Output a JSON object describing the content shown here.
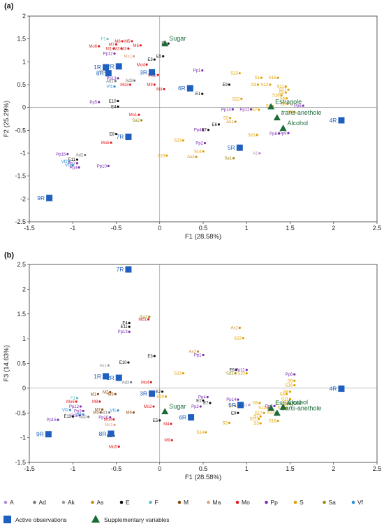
{
  "palette": {
    "A": "#b08fd0",
    "Ad": "#777777",
    "Ak": "#9a9a9a",
    "As": "#c98a1a",
    "E": "#111111",
    "F": "#5bbdbd",
    "M": "#8a4a12",
    "Ma": "#d9a27f",
    "Mo": "#e02020",
    "Pp": "#7a2fb0",
    "S": "#e0a000",
    "Sa": "#9a8a10",
    "Vf": "#2b8fd9",
    "active": "#1f5fbf",
    "supp": "#1b6b3a"
  },
  "legend": {
    "groups": [
      "A",
      "Ad",
      "Ak",
      "As",
      "E",
      "F",
      "M",
      "Ma",
      "Mo",
      "Pp",
      "S",
      "Sa",
      "Vf"
    ],
    "active_label": "Active observations",
    "supp_label": "Supplementary variables"
  },
  "chart_data": [
    {
      "panel": "(a)",
      "type": "scatter",
      "xlabel": "F1 (28.58%)",
      "ylabel": "F2 (25.29%)",
      "xlim": [
        -1.5,
        2.5
      ],
      "ylim": [
        -2.5,
        2.0
      ],
      "xticks": [
        "-1.5",
        "-1",
        "-0.5",
        "0",
        "0.5",
        "1",
        "1.5",
        "2",
        "2.5"
      ],
      "yticks": [
        "-2.5",
        "-2",
        "-1.5",
        "-1",
        "-0.5",
        "0",
        "0.5",
        "1",
        "1.5",
        "2"
      ],
      "points": [
        {
          "l": "M8",
          "g": "Mo",
          "x": -0.43,
          "y": 1.45
        },
        {
          "l": "M5",
          "g": "Mo",
          "x": -0.32,
          "y": 1.45
        },
        {
          "l": "M7",
          "g": "Mo",
          "x": -0.5,
          "y": 1.38
        },
        {
          "l": "M6",
          "g": "Mo",
          "x": -0.22,
          "y": 1.36
        },
        {
          "l": "Mo6",
          "g": "Mo",
          "x": -0.7,
          "y": 1.34
        },
        {
          "l": "M1",
          "g": "Mo",
          "x": -0.53,
          "y": 1.29
        },
        {
          "l": "M2",
          "g": "Mo",
          "x": -0.44,
          "y": 1.29
        },
        {
          "l": "M3",
          "g": "Mo",
          "x": -0.36,
          "y": 1.29
        },
        {
          "l": "Pp12",
          "g": "Pp",
          "x": -0.52,
          "y": 1.18
        },
        {
          "l": "Ms1",
          "g": "Ma",
          "x": -0.3,
          "y": 1.12
        },
        {
          "l": "F1",
          "g": "F",
          "x": -0.6,
          "y": 1.5
        },
        {
          "l": "Mo4",
          "g": "Mo",
          "x": -0.15,
          "y": 0.94
        },
        {
          "l": "E3",
          "g": "E",
          "x": -0.06,
          "y": 1.05
        },
        {
          "l": "E2",
          "g": "E",
          "x": 0.1,
          "y": 1.4
        },
        {
          "l": "E5",
          "g": "E",
          "x": 0.04,
          "y": 1.12
        },
        {
          "l": "Ak1",
          "g": "Ak",
          "x": -0.6,
          "y": 0.79
        },
        {
          "l": "Pp13",
          "g": "Pp",
          "x": -0.48,
          "y": 0.64
        },
        {
          "l": "Ad1",
          "g": "Ad",
          "x": -0.51,
          "y": 0.58
        },
        {
          "l": "Ad3",
          "g": "Ad",
          "x": -0.29,
          "y": 0.59
        },
        {
          "l": "Mo2",
          "g": "Mo",
          "x": -0.02,
          "y": 0.71
        },
        {
          "l": "Mo3",
          "g": "Mo",
          "x": -0.34,
          "y": 0.5
        },
        {
          "l": "Vf1",
          "g": "Vf",
          "x": -0.52,
          "y": 0.46
        },
        {
          "l": "M9",
          "g": "Mo",
          "x": -0.06,
          "y": 0.5
        },
        {
          "l": "M4",
          "g": "Mo",
          "x": 0.05,
          "y": 0.4
        },
        {
          "l": "E10",
          "g": "E",
          "x": -0.48,
          "y": 0.14
        },
        {
          "l": "E4",
          "g": "E",
          "x": -0.48,
          "y": 0.02
        },
        {
          "l": "Pp5",
          "g": "Pp",
          "x": -0.7,
          "y": 0.12
        },
        {
          "l": "Mo1",
          "g": "Mo",
          "x": -0.24,
          "y": -0.16
        },
        {
          "l": "Sa2",
          "g": "Sa",
          "x": -0.21,
          "y": -0.28
        },
        {
          "l": "E8",
          "g": "E",
          "x": -0.5,
          "y": -0.58
        },
        {
          "l": "Mo5",
          "g": "Mo",
          "x": -0.56,
          "y": -0.77
        },
        {
          "l": "Pp15",
          "g": "Pp",
          "x": -1.06,
          "y": -1.02
        },
        {
          "l": "Ad2",
          "g": "Ad",
          "x": -0.86,
          "y": -1.04
        },
        {
          "l": "E11",
          "g": "E",
          "x": -0.95,
          "y": -1.14
        },
        {
          "l": "Vf2",
          "g": "Vf",
          "x": -1.04,
          "y": -1.18
        },
        {
          "l": "Pp7",
          "g": "Pp",
          "x": -0.95,
          "y": -1.22
        },
        {
          "l": "Vf3",
          "g": "Vf",
          "x": -1.0,
          "y": -1.26
        },
        {
          "l": "Pp3",
          "g": "Pp",
          "x": -0.93,
          "y": -1.31
        },
        {
          "l": "Pp10",
          "g": "Pp",
          "x": -0.59,
          "y": -1.28
        },
        {
          "l": "Pp1",
          "g": "Pp",
          "x": 0.49,
          "y": 0.81
        },
        {
          "l": "E1",
          "g": "E",
          "x": 0.49,
          "y": 0.3
        },
        {
          "l": "E9",
          "g": "E",
          "x": 0.8,
          "y": 0.5
        },
        {
          "l": "S13",
          "g": "S",
          "x": 0.92,
          "y": 0.75
        },
        {
          "l": "S1",
          "g": "S",
          "x": 1.17,
          "y": 0.65
        },
        {
          "l": "S15",
          "g": "S",
          "x": 1.36,
          "y": 0.65
        },
        {
          "l": "S3",
          "g": "S",
          "x": 1.13,
          "y": 0.5
        },
        {
          "l": "S12",
          "g": "S",
          "x": 1.27,
          "y": 0.5
        },
        {
          "l": "S11",
          "g": "S",
          "x": 1.45,
          "y": 0.46
        },
        {
          "l": "S17",
          "g": "S",
          "x": 1.48,
          "y": 0.39
        },
        {
          "l": "S5",
          "g": "S",
          "x": 1.45,
          "y": 0.33
        },
        {
          "l": "S16",
          "g": "S",
          "x": 1.4,
          "y": 0.27
        },
        {
          "l": "S6",
          "g": "S",
          "x": 1.46,
          "y": 0.2
        },
        {
          "l": "S22",
          "g": "S",
          "x": 0.94,
          "y": 0.19
        },
        {
          "l": "S8",
          "g": "S",
          "x": 1.47,
          "y": 0.08
        },
        {
          "l": "S8",
          "g": "S",
          "x": 1.3,
          "y": 0.03
        },
        {
          "l": "Pp6",
          "g": "Pp",
          "x": 1.65,
          "y": 0.04
        },
        {
          "l": "S9",
          "g": "S",
          "x": 1.55,
          "y": -0.1
        },
        {
          "l": "S7",
          "g": "S",
          "x": 1.14,
          "y": -0.05
        },
        {
          "l": "Pp11",
          "g": "Pp",
          "x": 1.05,
          "y": -0.04
        },
        {
          "l": "Pp14",
          "g": "Pp",
          "x": 0.84,
          "y": -0.04
        },
        {
          "l": "S2",
          "g": "S",
          "x": 0.81,
          "y": -0.23
        },
        {
          "l": "As1",
          "g": "As",
          "x": 0.87,
          "y": -0.31
        },
        {
          "l": "E6",
          "g": "E",
          "x": 0.68,
          "y": -0.37
        },
        {
          "l": "Pp4",
          "g": "Pp",
          "x": 0.5,
          "y": -0.49
        },
        {
          "l": "E7",
          "g": "E",
          "x": 0.56,
          "y": -0.49
        },
        {
          "l": "Pp8",
          "g": "Pp",
          "x": 1.37,
          "y": -0.57
        },
        {
          "l": "Pp9",
          "g": "Pp",
          "x": 1.48,
          "y": -0.56
        },
        {
          "l": "S21",
          "g": "S",
          "x": 1.12,
          "y": -0.6
        },
        {
          "l": "S23",
          "g": "S",
          "x": 0.27,
          "y": -0.72
        },
        {
          "l": "Pp2",
          "g": "Pp",
          "x": 0.52,
          "y": -0.78
        },
        {
          "l": "S14",
          "g": "S",
          "x": 0.5,
          "y": -0.96
        },
        {
          "l": "S20",
          "g": "S",
          "x": 0.08,
          "y": -1.05
        },
        {
          "l": "As2",
          "g": "As",
          "x": 0.42,
          "y": -1.08
        },
        {
          "l": "Sa1",
          "g": "Sa",
          "x": 0.85,
          "y": -1.11
        },
        {
          "l": "A1",
          "g": "A",
          "x": 1.15,
          "y": -1.0
        }
      ],
      "active": [
        {
          "l": "1R",
          "x": -0.62,
          "y": 0.88
        },
        {
          "l": "2R",
          "x": -0.47,
          "y": 0.9
        },
        {
          "l": "8R",
          "x": -0.59,
          "y": 0.75
        },
        {
          "l": "3R",
          "x": -0.09,
          "y": 0.77
        },
        {
          "l": "6R",
          "x": 0.35,
          "y": 0.42
        },
        {
          "l": "7R",
          "x": -0.36,
          "y": -0.64
        },
        {
          "l": "5R",
          "x": 0.92,
          "y": -0.88
        },
        {
          "l": "4R",
          "x": 2.09,
          "y": -0.28
        },
        {
          "l": "9R",
          "x": -1.27,
          "y": -1.98
        }
      ],
      "supp": [
        {
          "l": "Sugar",
          "x": 0.06,
          "y": 1.4
        },
        {
          "l": "Estragole",
          "x": 1.28,
          "y": 0.02
        },
        {
          "l": "trans-anethole",
          "x": 1.35,
          "y": -0.22
        },
        {
          "l": "Alcohol",
          "x": 1.42,
          "y": -0.45
        }
      ]
    },
    {
      "panel": "(b)",
      "type": "scatter",
      "xlabel": "F1 (28.58%)",
      "ylabel": "F3 (14.63%)",
      "xlim": [
        -1.5,
        2.5
      ],
      "ylim": [
        -1.5,
        2.5
      ],
      "xticks": [
        "-1.5",
        "-1",
        "-0.5",
        "0",
        "0.5",
        "1",
        "1.5",
        "2",
        "2.5"
      ],
      "yticks": [
        "-1.5",
        "-1",
        "-0.5",
        "0",
        "0.5",
        "1",
        "1.5",
        "2",
        "2.5"
      ],
      "points": [
        {
          "l": "Sa2",
          "g": "Sa",
          "x": -0.12,
          "y": 1.44
        },
        {
          "l": "Mo1",
          "g": "Mo",
          "x": -0.13,
          "y": 1.39
        },
        {
          "l": "E4",
          "g": "E",
          "x": -0.35,
          "y": 1.32
        },
        {
          "l": "E11",
          "g": "E",
          "x": -0.35,
          "y": 1.24
        },
        {
          "l": "Pp13",
          "g": "Pp",
          "x": -0.35,
          "y": 1.14
        },
        {
          "l": "As1",
          "g": "As",
          "x": 0.92,
          "y": 1.22
        },
        {
          "l": "S22",
          "g": "S",
          "x": 0.96,
          "y": 1.01
        },
        {
          "l": "As2",
          "g": "As",
          "x": 0.44,
          "y": 0.74
        },
        {
          "l": "Pp1",
          "g": "Pp",
          "x": 0.5,
          "y": 0.67
        },
        {
          "l": "E3",
          "g": "E",
          "x": -0.06,
          "y": 0.65
        },
        {
          "l": "E10",
          "g": "E",
          "x": -0.36,
          "y": 0.52
        },
        {
          "l": "Ak1",
          "g": "Ak",
          "x": -0.59,
          "y": 0.46
        },
        {
          "l": "E6",
          "g": "E",
          "x": 0.88,
          "y": 0.37
        },
        {
          "l": "Pp11",
          "g": "Pp",
          "x": 1.0,
          "y": 0.37
        },
        {
          "l": "S23",
          "g": "S",
          "x": 0.27,
          "y": 0.3
        },
        {
          "l": "Sa1",
          "g": "Sa",
          "x": 0.87,
          "y": 0.3
        },
        {
          "l": "S10",
          "g": "S",
          "x": 1.0,
          "y": 0.3
        },
        {
          "l": "Ad3",
          "g": "Ad",
          "x": -0.33,
          "y": 0.12
        },
        {
          "l": "Mo4",
          "g": "Mo",
          "x": -0.1,
          "y": 0.12
        },
        {
          "l": "Pp6",
          "g": "Pp",
          "x": 1.55,
          "y": 0.28
        },
        {
          "l": "S9",
          "g": "S",
          "x": 1.55,
          "y": 0.15
        },
        {
          "l": "S16",
          "g": "S",
          "x": 1.55,
          "y": 0.06
        },
        {
          "l": "S8",
          "g": "S",
          "x": 1.5,
          "y": -0.07
        },
        {
          "l": "S6",
          "g": "S",
          "x": 1.46,
          "y": -0.12
        },
        {
          "l": "S11",
          "g": "S",
          "x": 1.5,
          "y": -0.22
        },
        {
          "l": "S19",
          "g": "S",
          "x": 1.5,
          "y": -0.32
        },
        {
          "l": "S15",
          "g": "S",
          "x": 1.46,
          "y": -0.4
        },
        {
          "l": "S12",
          "g": "S",
          "x": 1.24,
          "y": -0.4
        },
        {
          "l": "S5",
          "g": "S",
          "x": 1.15,
          "y": -0.3
        },
        {
          "l": "A1",
          "g": "A",
          "x": 1.03,
          "y": -0.34
        },
        {
          "l": "Pp8",
          "g": "Pp",
          "x": 1.32,
          "y": -0.36
        },
        {
          "l": "S13",
          "g": "S",
          "x": 1.34,
          "y": -0.49
        },
        {
          "l": "S17",
          "g": "S",
          "x": 1.2,
          "y": -0.5
        },
        {
          "l": "S1",
          "g": "S",
          "x": 1.16,
          "y": -0.57
        },
        {
          "l": "S21",
          "g": "S",
          "x": 1.14,
          "y": -0.62
        },
        {
          "l": "S18",
          "g": "S",
          "x": 1.36,
          "y": -0.66
        },
        {
          "l": "S3",
          "g": "S",
          "x": 1.16,
          "y": -0.71
        },
        {
          "l": "Pp14",
          "g": "Pp",
          "x": 0.9,
          "y": -0.23
        },
        {
          "l": "S7",
          "g": "S",
          "x": 0.87,
          "y": -0.36
        },
        {
          "l": "E9",
          "g": "E",
          "x": 0.9,
          "y": -0.5
        },
        {
          "l": "S2",
          "g": "S",
          "x": 0.8,
          "y": -0.7
        },
        {
          "l": "Pp4",
          "g": "Pp",
          "x": 0.55,
          "y": -0.18
        },
        {
          "l": "E1",
          "g": "E",
          "x": 0.5,
          "y": -0.25
        },
        {
          "l": "E7",
          "g": "E",
          "x": 0.58,
          "y": -0.3
        },
        {
          "l": "Pp2",
          "g": "Pp",
          "x": 0.47,
          "y": -0.37
        },
        {
          "l": "S14",
          "g": "S",
          "x": 0.53,
          "y": -0.89
        },
        {
          "l": "E2",
          "g": "E",
          "x": 0.03,
          "y": -0.07
        },
        {
          "l": "S20",
          "g": "S",
          "x": 0.07,
          "y": -0.17
        },
        {
          "l": "Mo2",
          "g": "Mo",
          "x": -0.07,
          "y": -0.37
        },
        {
          "l": "E5",
          "g": "E",
          "x": 0.0,
          "y": -0.65
        },
        {
          "l": "M4",
          "g": "Mo",
          "x": 0.13,
          "y": -0.72
        },
        {
          "l": "M9",
          "g": "Mo",
          "x": 0.14,
          "y": -1.05
        },
        {
          "l": "F1",
          "g": "F",
          "x": -0.95,
          "y": -0.2
        },
        {
          "l": "M1",
          "g": "M",
          "x": -0.71,
          "y": -0.12
        },
        {
          "l": "M2",
          "g": "M",
          "x": -0.57,
          "y": -0.08
        },
        {
          "l": "M5",
          "g": "M",
          "x": -0.51,
          "y": -0.12
        },
        {
          "l": "Mo6",
          "g": "Mo",
          "x": -0.96,
          "y": -0.27
        },
        {
          "l": "M8",
          "g": "Mo",
          "x": -0.69,
          "y": -0.27
        },
        {
          "l": "M7",
          "g": "M",
          "x": -0.66,
          "y": -0.43
        },
        {
          "l": "M3",
          "g": "M",
          "x": -0.68,
          "y": -0.49
        },
        {
          "l": "Pp12",
          "g": "Pp",
          "x": -0.91,
          "y": -0.37
        },
        {
          "l": "Vf1",
          "g": "Vf",
          "x": -0.48,
          "y": -0.45
        },
        {
          "l": "Ad1",
          "g": "Ad",
          "x": -0.58,
          "y": -0.49
        },
        {
          "l": "M6",
          "g": "M",
          "x": -0.3,
          "y": -0.49
        },
        {
          "l": "Mo3",
          "g": "Mo",
          "x": -0.53,
          "y": -0.63
        },
        {
          "l": "Ms1",
          "g": "Ma",
          "x": -0.52,
          "y": -0.74
        },
        {
          "l": "Pp10",
          "g": "Pp",
          "x": -0.57,
          "y": -0.59
        },
        {
          "l": "Vf2",
          "g": "Vf",
          "x": -1.03,
          "y": -0.44
        },
        {
          "l": "Pp3",
          "g": "Pp",
          "x": -0.88,
          "y": -0.46
        },
        {
          "l": "E11b",
          "g": "E",
          "x": -1.0,
          "y": -0.57
        },
        {
          "l": "Vf3",
          "g": "Vf",
          "x": -0.88,
          "y": -0.53
        },
        {
          "l": "Ad2",
          "g": "Ad",
          "x": -0.82,
          "y": -0.58
        },
        {
          "l": "Pp5",
          "g": "Pp",
          "x": -0.92,
          "y": -0.55
        },
        {
          "l": "Pp15",
          "g": "Pp",
          "x": -1.17,
          "y": -0.64
        },
        {
          "l": "E8",
          "g": "E",
          "x": -0.53,
          "y": -0.96
        },
        {
          "l": "Mo5",
          "g": "Mo",
          "x": -0.47,
          "y": -1.18
        }
      ],
      "active": [
        {
          "l": "7R",
          "x": -0.36,
          "y": 2.4
        },
        {
          "l": "1R",
          "x": -0.62,
          "y": 0.24
        },
        {
          "l": "2R",
          "x": -0.47,
          "y": 0.21
        },
        {
          "l": "3R",
          "x": -0.09,
          "y": -0.11
        },
        {
          "l": "4R",
          "x": 2.09,
          "y": -0.01
        },
        {
          "l": "6R",
          "x": 0.36,
          "y": -0.59
        },
        {
          "l": "5R",
          "x": 0.93,
          "y": -0.34
        },
        {
          "l": "8R",
          "x": -0.56,
          "y": -0.92
        },
        {
          "l": "9R",
          "x": -1.28,
          "y": -0.93
        }
      ],
      "supp": [
        {
          "l": "Sugar",
          "x": 0.06,
          "y": -0.47
        },
        {
          "l": "Estragole",
          "x": 1.28,
          "y": -0.4
        },
        {
          "l": "Alcohol",
          "x": 1.42,
          "y": -0.38
        },
        {
          "l": "trans-anethole",
          "x": 1.35,
          "y": -0.5
        }
      ]
    }
  ]
}
